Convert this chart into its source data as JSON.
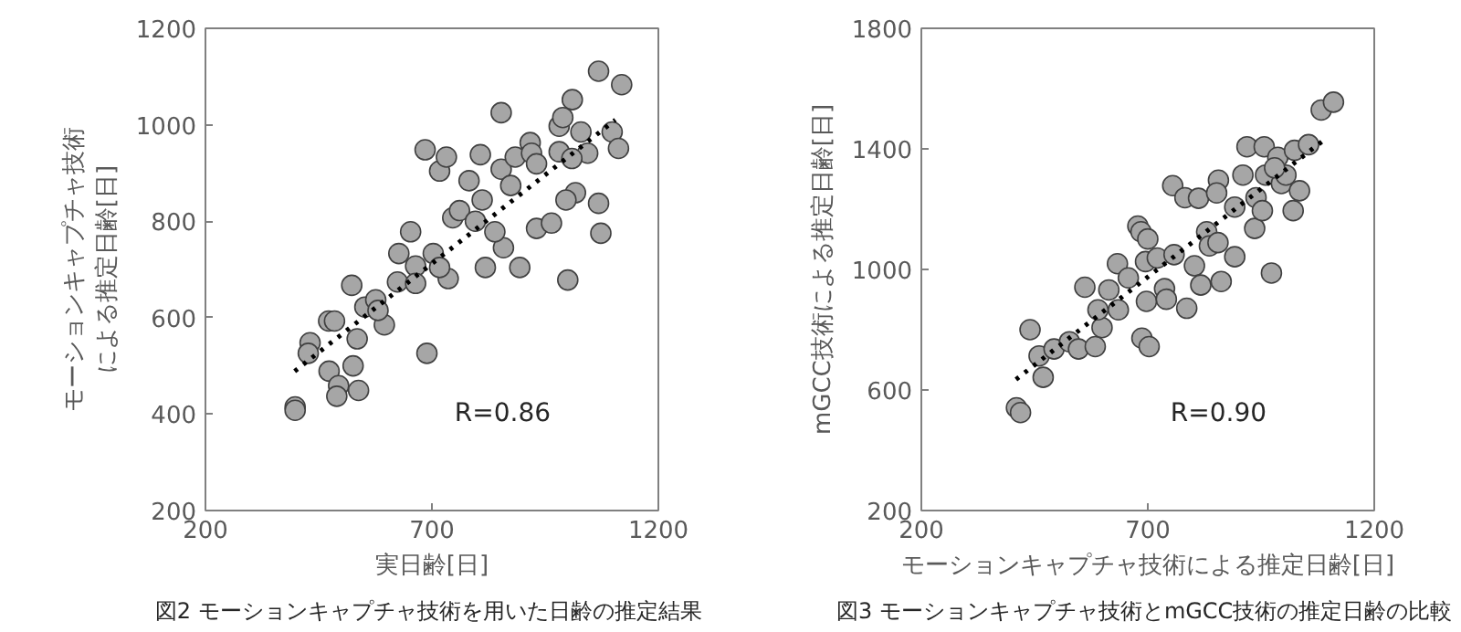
{
  "chart_data": [
    {
      "type": "scatter",
      "xlabel": "実日齢[日]",
      "ylabel": "モーションキャプチャ技術による推定日齢[日]",
      "xlim": [
        200,
        1200
      ],
      "ylim": [
        200,
        1200
      ],
      "xticks": [
        200,
        700,
        1200
      ],
      "yticks": [
        200,
        400,
        600,
        800,
        1000,
        1200
      ],
      "grid": false,
      "annotations": [
        "R=0.86",
        "図2  モーションキャプチャ技術を用いた日齢の推定結果"
      ],
      "series": [
        {
          "marker": "circle",
          "color": "#a6a6a6",
          "x": [
            398,
            398,
            431,
            427,
            472,
            485,
            473,
            494,
            490,
            526,
            535,
            538,
            523,
            552,
            576,
            595,
            581,
            627,
            653,
            624,
            664,
            664,
            689,
            685,
            717,
            732,
            703,
            736,
            717,
            746,
            761,
            782,
            807,
            811,
            796,
            818,
            858,
            839,
            853,
            853,
            894,
            884,
            874,
            917,
            920,
            931,
            931,
            964,
            981,
            989,
            1010,
            1000,
            1017,
            996,
            1068,
            1073,
            1044,
            1029,
            1068,
            1119,
            1098,
            1112,
            981,
            1009
          ],
          "values": [
            415,
            408,
            548,
            526,
            593,
            593,
            489,
            459,
            437,
            500,
            556,
            449,
            667,
            622,
            637,
            585,
            615,
            733,
            778,
            674,
            707,
            671,
            526,
            948,
            904,
            933,
            733,
            681,
            704,
            807,
            822,
            884,
            938,
            844,
            800,
            704,
            745,
            778,
            908,
            1025,
            704,
            933,
            874,
            963,
            941,
            919,
            785,
            796,
            997,
            1015,
            1052,
            678,
            859,
            844,
            837,
            775,
            941,
            985,
            1111,
            1083,
            985,
            951,
            944,
            930
          ]
        },
        {
          "type": "line",
          "marker": "none",
          "line_style": "dotted",
          "color": "#000000",
          "x": [
            397,
            1105
          ],
          "values": [
            489,
            1010
          ]
        }
      ]
    },
    {
      "type": "scatter",
      "xlabel": "モーションキャプチャ技術による推定日齢[日]",
      "ylabel": "mGCC技術による推定日齢[日]",
      "xlim": [
        200,
        1200
      ],
      "ylim": [
        200,
        1800
      ],
      "xticks": [
        200,
        700,
        1200
      ],
      "yticks": [
        200,
        600,
        1000,
        1400,
        1800
      ],
      "grid": false,
      "annotations": [
        "R=0.90",
        "図3  モーションキャプチャ技術とmGCC技術の推定日齢の比較"
      ],
      "series": [
        {
          "marker": "circle",
          "color": "#a6a6a6",
          "x": [
            410,
            419,
            440,
            460,
            469,
            493,
            527,
            547,
            584,
            561,
            599,
            590,
            633,
            614,
            635,
            657,
            678,
            685,
            700,
            697,
            687,
            703,
            695,
            721,
            737,
            741,
            755,
            758,
            782,
            786,
            812,
            803,
            817,
            830,
            836,
            856,
            852,
            862,
            855,
            892,
            892,
            910,
            919,
            936,
            939,
            957,
            953,
            973,
            987,
            960,
            995,
            1021,
            1024,
            1035,
            1055,
            1083,
            1110,
            1005,
            980
          ],
          "values": [
            541,
            525,
            800,
            713,
            642,
            736,
            760,
            736,
            744,
            941,
            807,
            866,
            1019,
            932,
            866,
            972,
            1144,
            1125,
            1101,
            894,
            772,
            744,
            1026,
            1038,
            936,
            901,
            1278,
            1049,
            1238,
            871,
            1236,
            1012,
            948,
            1125,
            1078,
            1296,
            1254,
            960,
            1089,
            1207,
            1042,
            1313,
            1407,
            1136,
            1238,
            1407,
            1195,
            988,
            1372,
            1313,
            1285,
            1195,
            1395,
            1261,
            1414,
            1529,
            1555,
            1313,
            1337
          ]
        },
        {
          "type": "line",
          "marker": "none",
          "line_style": "dotted",
          "color": "#000000",
          "x": [
            409,
            1086
          ],
          "values": [
            635,
            1426
          ]
        }
      ]
    }
  ]
}
